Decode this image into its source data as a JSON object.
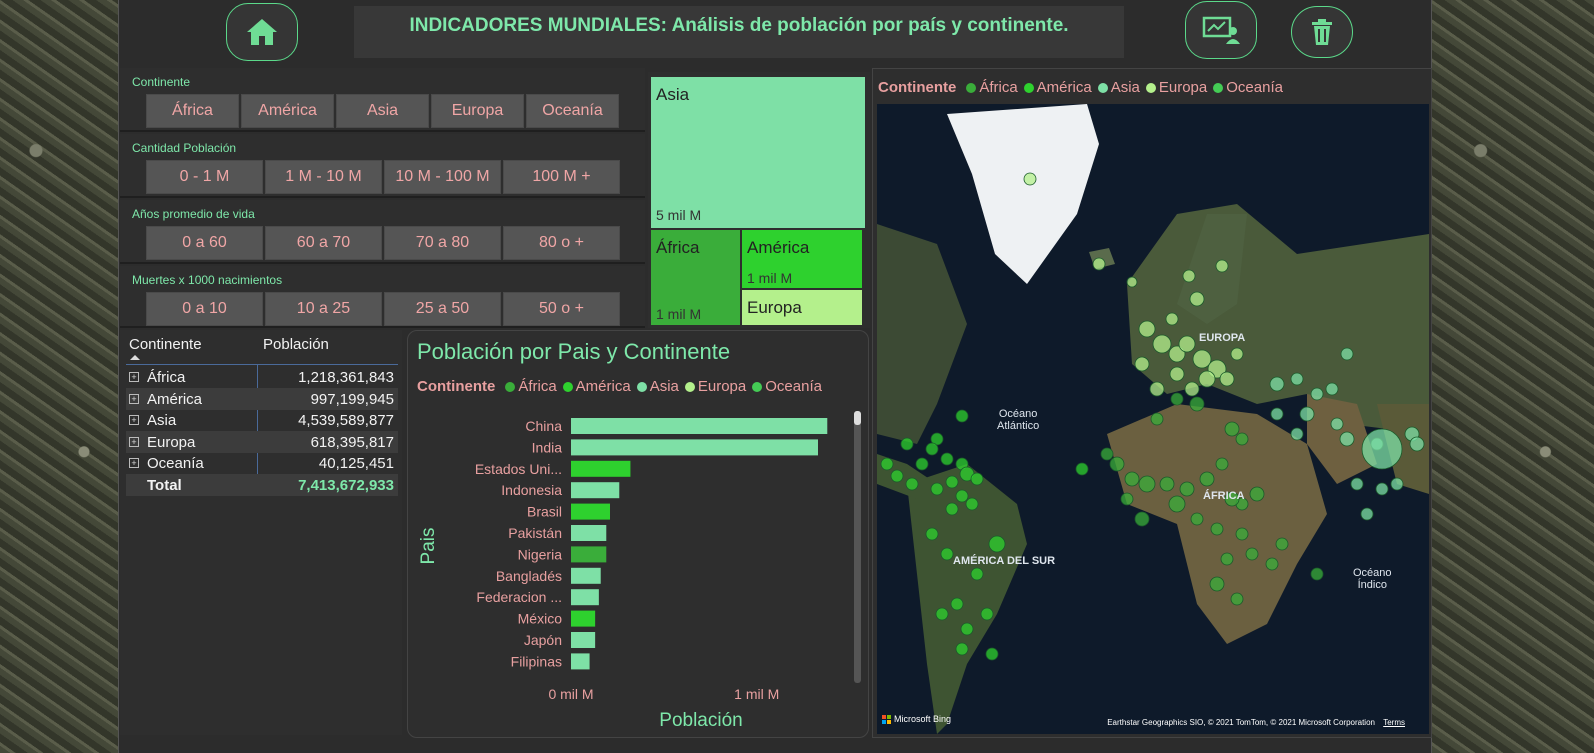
{
  "header": {
    "title": "INDICADORES MUNDIALES:  Análisis de población por país y continente.",
    "home_icon": "home-icon",
    "presenter_icon": "presenter-icon",
    "trash_icon": "trash-icon"
  },
  "colors": {
    "africa": "#3aad3a",
    "america": "#2ed12e",
    "asia": "#7ee0a6",
    "europa": "#b4f08c",
    "oceania": "#44cc55",
    "accent": "#7ee8aa",
    "label_pink": "#e8a0a0"
  },
  "slicers": {
    "continente": {
      "label": "Continente",
      "options": [
        "África",
        "América",
        "Asia",
        "Europa",
        "Oceanía"
      ]
    },
    "poblacion": {
      "label": "Cantidad Población",
      "options": [
        "0 - 1 M",
        "1 M - 10 M",
        "10 M - 100 M",
        "100 M +"
      ]
    },
    "vida": {
      "label": "Años promedio de vida",
      "options": [
        "0 a 60",
        "60 a 70",
        "70 a 80",
        "80 o +"
      ]
    },
    "muertes": {
      "label": "Muertes x 1000 nacimientos",
      "options": [
        "0 a 10",
        "10 a 25",
        "25 a 50",
        "50 o +"
      ]
    }
  },
  "table": {
    "col1": "Continente",
    "col2": "Población",
    "rows": [
      {
        "name": "África",
        "value": "1,218,361,843"
      },
      {
        "name": "América",
        "value": "997,199,945"
      },
      {
        "name": "Asia",
        "value": "4,539,589,877"
      },
      {
        "name": "Europa",
        "value": "618,395,817"
      },
      {
        "name": "Oceanía",
        "value": "40,125,451"
      }
    ],
    "total_label": "Total",
    "total_value": "7,413,672,933"
  },
  "treemap": {
    "asia": {
      "name": "Asia",
      "value": "5 mil M"
    },
    "africa": {
      "name": "África",
      "value": "1 mil M"
    },
    "america": {
      "name": "América",
      "value": "1 mil M"
    },
    "europa": {
      "name": "Europa"
    }
  },
  "legend": {
    "title": "Continente",
    "items": [
      "África",
      "América",
      "Asia",
      "Europa",
      "Oceanía"
    ]
  },
  "chart_data": {
    "type": "bar",
    "orientation": "horizontal",
    "title": "Población por Pais y Continente",
    "xlabel": "Población",
    "ylabel": "Pais",
    "x_ticks": [
      "0 mil M",
      "1 mil M"
    ],
    "xlim": [
      0,
      1.4
    ],
    "categories": [
      "China",
      "India",
      "Estados Uni...",
      "Indonesia",
      "Brasil",
      "Pakistán",
      "Nigeria",
      "Bangladés",
      "Federacion ...",
      "México",
      "Japón",
      "Filipinas"
    ],
    "values": [
      1.38,
      1.33,
      0.32,
      0.26,
      0.21,
      0.19,
      0.19,
      0.16,
      0.15,
      0.13,
      0.13,
      0.1
    ],
    "continents": [
      "asia",
      "asia",
      "america",
      "asia",
      "america",
      "asia",
      "africa",
      "asia",
      "asia",
      "america",
      "asia",
      "asia"
    ]
  },
  "map": {
    "labels": [
      "Océano\nAtlántico",
      "EUROPA",
      "ÁFRICA",
      "AMÉRICA DEL SUR",
      "Océano\nÍndico"
    ],
    "attribution": "Earthstar Geographics SIO, © 2021 TomTom, © 2021 Microsoft Corporation",
    "terms": "Terms",
    "brand": "Microsoft Bing"
  }
}
